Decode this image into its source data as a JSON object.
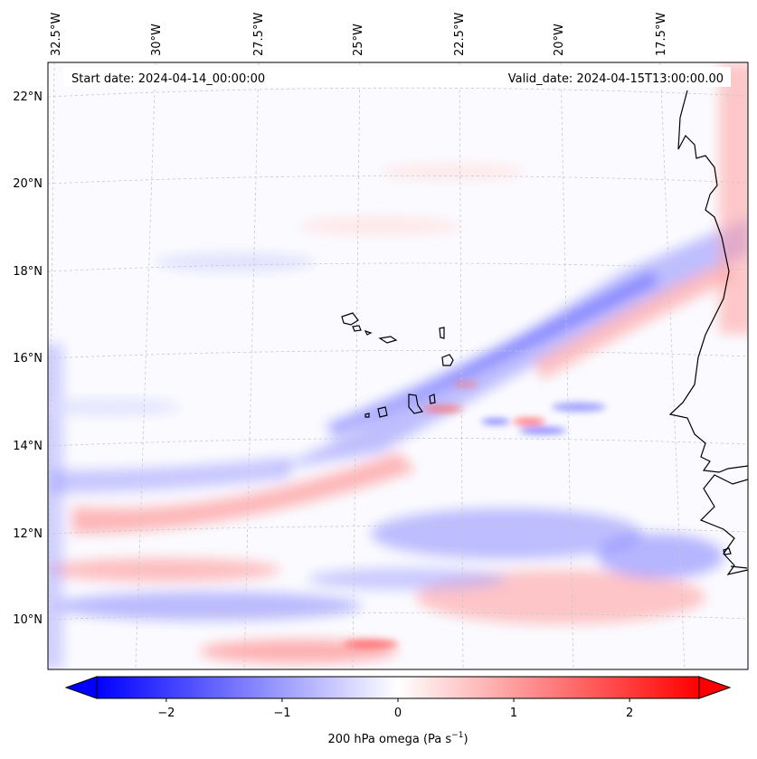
{
  "header": {
    "start_label": "Start date: 2024-04-14_00:00:00",
    "valid_label": "Valid_date: 2024-04-15T13:00:00.00"
  },
  "map": {
    "variable": "200 hPa omega",
    "lon_ticks": [
      "32.5°W",
      "30°W",
      "27.5°W",
      "25°W",
      "22.5°W",
      "20°W",
      "17.5°W"
    ],
    "lat_ticks": [
      "22°N",
      "20°N",
      "18°N",
      "16°N",
      "14°N",
      "12°N",
      "10°N"
    ],
    "colors": {
      "negative": "#0000ff",
      "zero": "#ffffff",
      "positive": "#ff0000",
      "coastline": "#000000",
      "gridline": "#c8c8c8"
    }
  },
  "colorbar": {
    "ticks": [
      "−2",
      "−1",
      "0",
      "1",
      "2"
    ],
    "tick_values": [
      -2,
      -1,
      0,
      1,
      2
    ],
    "vmin": -2.6,
    "vmax": 2.6,
    "label_main": "200 hPa omega (Pa s",
    "label_sup": "−1",
    "label_end": ")"
  }
}
